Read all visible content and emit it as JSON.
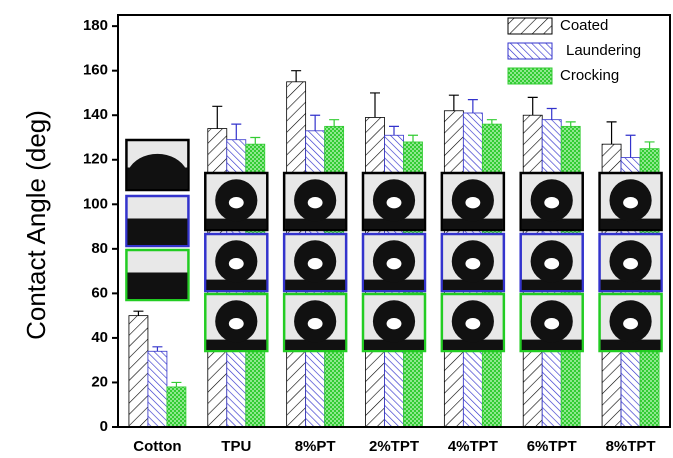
{
  "chart_data": {
    "type": "bar",
    "y_label": "Contact Angle (deg)",
    "categories": [
      "Cotton",
      "TPU",
      "8%PT",
      "2%TPT",
      "4%TPT",
      "6%TPT",
      "8%TPT"
    ],
    "series": [
      {
        "name": "Coated",
        "color": "#000000",
        "values": [
          50,
          134,
          155,
          139,
          142,
          140,
          127
        ],
        "errors": [
          2,
          10,
          5,
          11,
          7,
          8,
          10
        ]
      },
      {
        "name": "Laundering",
        "color": "#3333cc",
        "values": [
          34,
          129,
          133,
          131,
          141,
          138,
          121
        ],
        "errors": [
          2,
          7,
          7,
          4,
          6,
          5,
          10
        ]
      },
      {
        "name": "Crocking",
        "color": "#33cc33",
        "values": [
          18,
          127,
          135,
          128,
          136,
          135,
          125
        ],
        "errors": [
          2,
          3,
          3,
          3,
          2,
          2,
          3
        ]
      }
    ],
    "ylim": [
      0,
      185
    ],
    "yticks": [
      0,
      20,
      40,
      60,
      80,
      100,
      120,
      140,
      160,
      180
    ],
    "legend": "top-right"
  }
}
